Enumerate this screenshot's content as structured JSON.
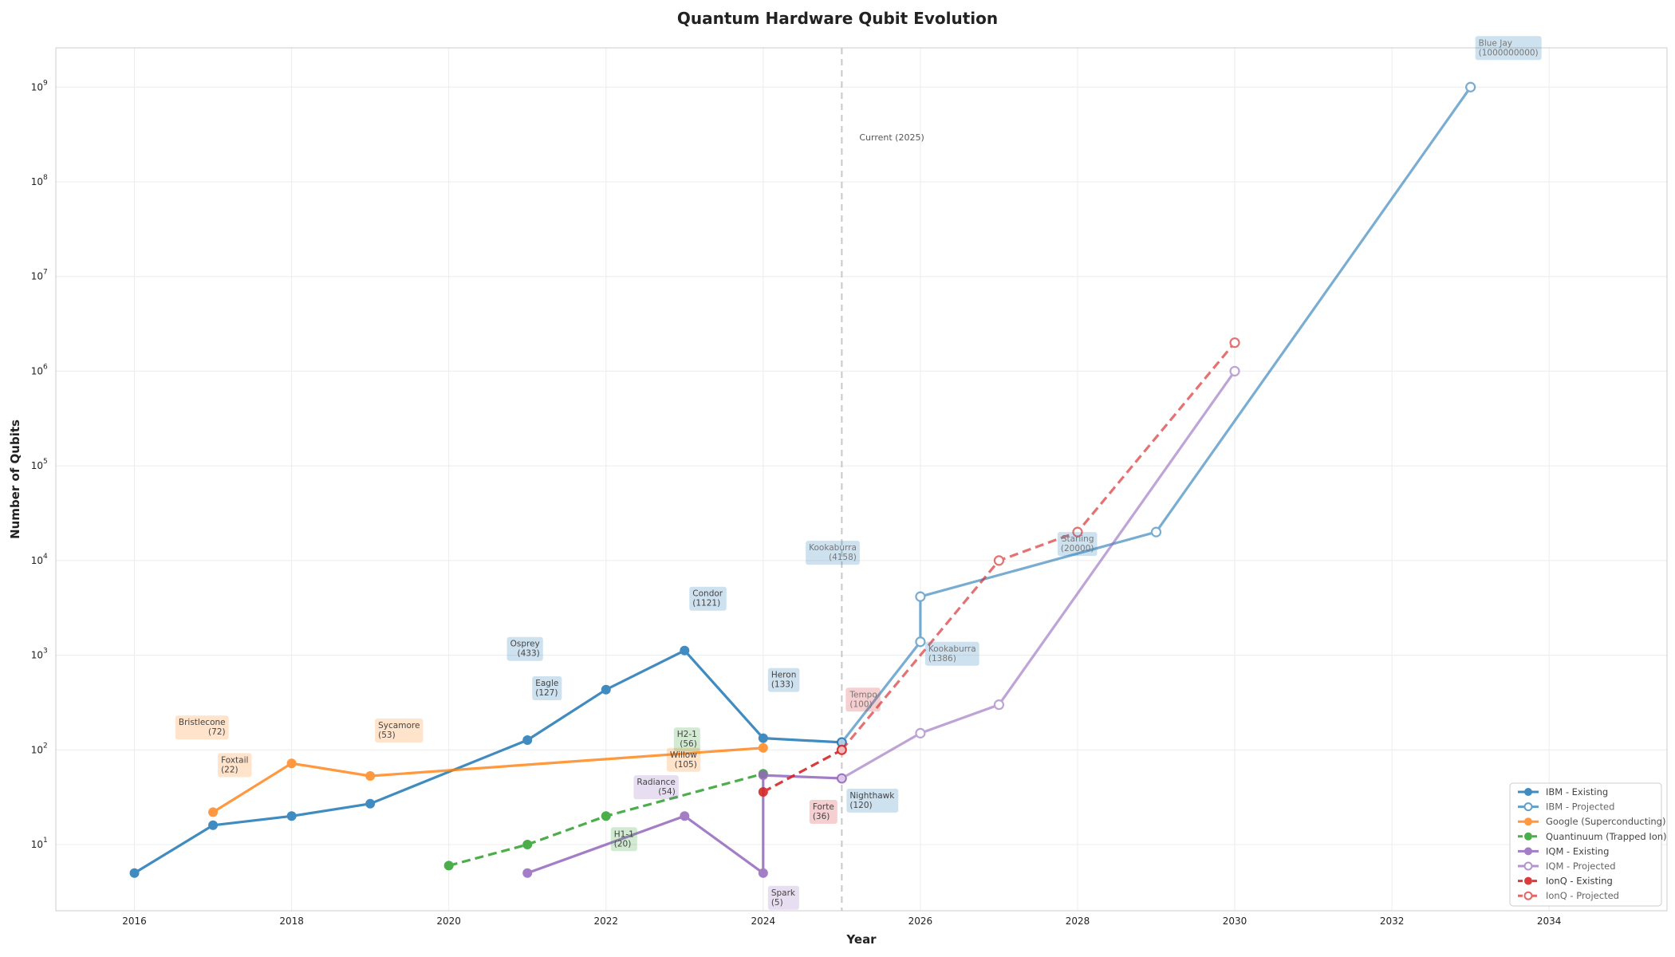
{
  "chart_data": {
    "type": "line",
    "title": "Quantum Hardware Qubit Evolution",
    "xlabel": "Year",
    "ylabel": "Number of Qubits",
    "xlim": [
      2015,
      2035.5
    ],
    "ylim": [
      2,
      2600000000
    ],
    "yscale": "log",
    "grid": true,
    "legend_position": "lower-right",
    "xticks": [
      2016,
      2018,
      2020,
      2022,
      2024,
      2026,
      2028,
      2030,
      2032,
      2034
    ],
    "yticks": [
      1,
      2,
      3,
      4,
      5,
      6,
      7,
      8,
      9
    ],
    "ytick_base": "10",
    "current_year": {
      "x": 2025,
      "label": "Current (2025)"
    },
    "series": [
      {
        "name": "IBM - Existing",
        "color": "#1f77b4",
        "style": "solid",
        "marker": "filled",
        "alpha": 0.85,
        "x": [
          2016,
          2017,
          2018,
          2019,
          2021,
          2022,
          2023,
          2024,
          2025
        ],
        "y": [
          5,
          16,
          20,
          27,
          127,
          433,
          1121,
          133,
          120
        ]
      },
      {
        "name": "IBM - Projected",
        "color": "#1f77b4",
        "style": "solid",
        "marker": "open",
        "alpha": 0.6,
        "x": [
          2025,
          2026,
          2026,
          2029,
          2033
        ],
        "y": [
          120,
          1386,
          4158,
          20000,
          1000000000
        ]
      },
      {
        "name": "Google (Superconducting)",
        "color": "#ff7f0e",
        "style": "solid",
        "marker": "filled",
        "alpha": 0.8,
        "x": [
          2017,
          2018,
          2019,
          2024
        ],
        "y": [
          22,
          72,
          53,
          105
        ]
      },
      {
        "name": "Quantinuum (Trapped Ion)",
        "color": "#2ca02c",
        "style": "dashed",
        "marker": "filled",
        "alpha": 0.85,
        "x": [
          2020,
          2021,
          2022,
          2024
        ],
        "y": [
          6,
          10,
          20,
          56
        ]
      },
      {
        "name": "IQM - Existing",
        "color": "#9467bd",
        "style": "solid",
        "marker": "filled",
        "alpha": 0.85,
        "x": [
          2021,
          2023,
          2024,
          2024,
          2025
        ],
        "y": [
          5,
          20,
          5,
          54,
          50
        ]
      },
      {
        "name": "IQM - Projected",
        "color": "#9467bd",
        "style": "solid",
        "marker": "open",
        "alpha": 0.6,
        "x": [
          2025,
          2026,
          2027,
          2030
        ],
        "y": [
          50,
          150,
          300,
          1000000
        ]
      },
      {
        "name": "IonQ - Existing",
        "color": "#d62728",
        "style": "dashed",
        "marker": "filled",
        "alpha": 0.9,
        "x": [
          2024,
          2025
        ],
        "y": [
          36,
          100
        ]
      },
      {
        "name": "IonQ - Projected",
        "color": "#d62728",
        "style": "dashed",
        "marker": "open",
        "alpha": 0.65,
        "x": [
          2025,
          2027,
          2028,
          2030
        ],
        "y": [
          100,
          10000,
          20000,
          2000000
        ]
      }
    ],
    "annotations": [
      {
        "name": "Blue Jay",
        "value": "(1000000000)",
        "x": 2033,
        "y": 1000000000,
        "color": "#1f77b4",
        "anchor": "start",
        "dx": 10,
        "dy": -52,
        "faded": true
      },
      {
        "name": "Kookaburra",
        "value": "(4158)",
        "x": 2026,
        "y": 4158,
        "color": "#1f77b4",
        "anchor": "end",
        "dx": -80,
        "dy": -58,
        "faded": true
      },
      {
        "name": "Starling",
        "value": "(20000)",
        "x": 2029,
        "y": 20000,
        "color": "#1f77b4",
        "anchor": "end",
        "dx": -78,
        "dy": 12,
        "faded": true
      },
      {
        "name": "Kookaburra",
        "value": "(1386)",
        "x": 2026,
        "y": 1386,
        "color": "#1f77b4",
        "anchor": "start",
        "dx": 10,
        "dy": 12,
        "faded": true
      },
      {
        "name": "Condor",
        "value": "(1121)",
        "x": 2023,
        "y": 1121,
        "color": "#1f77b4",
        "anchor": "start",
        "dx": 10,
        "dy": -68,
        "faded": false
      },
      {
        "name": "Osprey",
        "value": "(433)",
        "x": 2022,
        "y": 433,
        "color": "#1f77b4",
        "anchor": "end",
        "dx": -83,
        "dy": -54,
        "faded": false
      },
      {
        "name": "Eagle",
        "value": "(127)",
        "x": 2021,
        "y": 127,
        "color": "#1f77b4",
        "anchor": "start",
        "dx": 10,
        "dy": -68,
        "faded": false
      },
      {
        "name": "Heron",
        "value": "(133)",
        "x": 2024,
        "y": 133,
        "color": "#1f77b4",
        "anchor": "start",
        "dx": 10,
        "dy": -76,
        "faded": false
      },
      {
        "name": "Nighthawk",
        "value": "(120)",
        "x": 2025,
        "y": 120,
        "color": "#1f77b4",
        "anchor": "start",
        "dx": 10,
        "dy": 70,
        "faded": false
      },
      {
        "name": "Bristlecone",
        "value": "(72)",
        "x": 2018,
        "y": 72,
        "color": "#ff7f0e",
        "anchor": "end",
        "dx": -83,
        "dy": -48,
        "faded": false
      },
      {
        "name": "Foxtail",
        "value": "(22)",
        "x": 2017,
        "y": 22,
        "color": "#ff7f0e",
        "anchor": "start",
        "dx": 10,
        "dy": -62,
        "faded": false
      },
      {
        "name": "Sycamore",
        "value": "(53)",
        "x": 2019,
        "y": 53,
        "color": "#ff7f0e",
        "anchor": "start",
        "dx": 10,
        "dy": -60,
        "faded": false
      },
      {
        "name": "Willow",
        "value": "(105)",
        "x": 2024,
        "y": 105,
        "color": "#ff7f0e",
        "anchor": "end",
        "dx": -83,
        "dy": 12,
        "faded": false
      },
      {
        "name": "H2-1",
        "value": "(56)",
        "x": 2024,
        "y": 56,
        "color": "#2ca02c",
        "anchor": "end",
        "dx": -83,
        "dy": -46,
        "faded": false
      },
      {
        "name": "H1-1",
        "value": "(20)",
        "x": 2022,
        "y": 20,
        "color": "#2ca02c",
        "anchor": "start",
        "dx": 10,
        "dy": 26,
        "faded": false
      },
      {
        "name": "Radiance",
        "value": "(54)",
        "x": 2024,
        "y": 54,
        "color": "#9467bd",
        "anchor": "end",
        "dx": -110,
        "dy": 12,
        "faded": false
      },
      {
        "name": "Spark",
        "value": "(5)",
        "x": 2024,
        "y": 5,
        "color": "#9467bd",
        "anchor": "start",
        "dx": 10,
        "dy": 28,
        "faded": false
      },
      {
        "name": "Tempo",
        "value": "(100)",
        "x": 2025,
        "y": 100,
        "color": "#d62728",
        "anchor": "start",
        "dx": 10,
        "dy": -66,
        "faded": true
      },
      {
        "name": "Forte",
        "value": "(36)",
        "x": 2024,
        "y": 36,
        "color": "#d62728",
        "anchor": "start",
        "dx": 62,
        "dy": 22,
        "faded": false
      }
    ]
  }
}
